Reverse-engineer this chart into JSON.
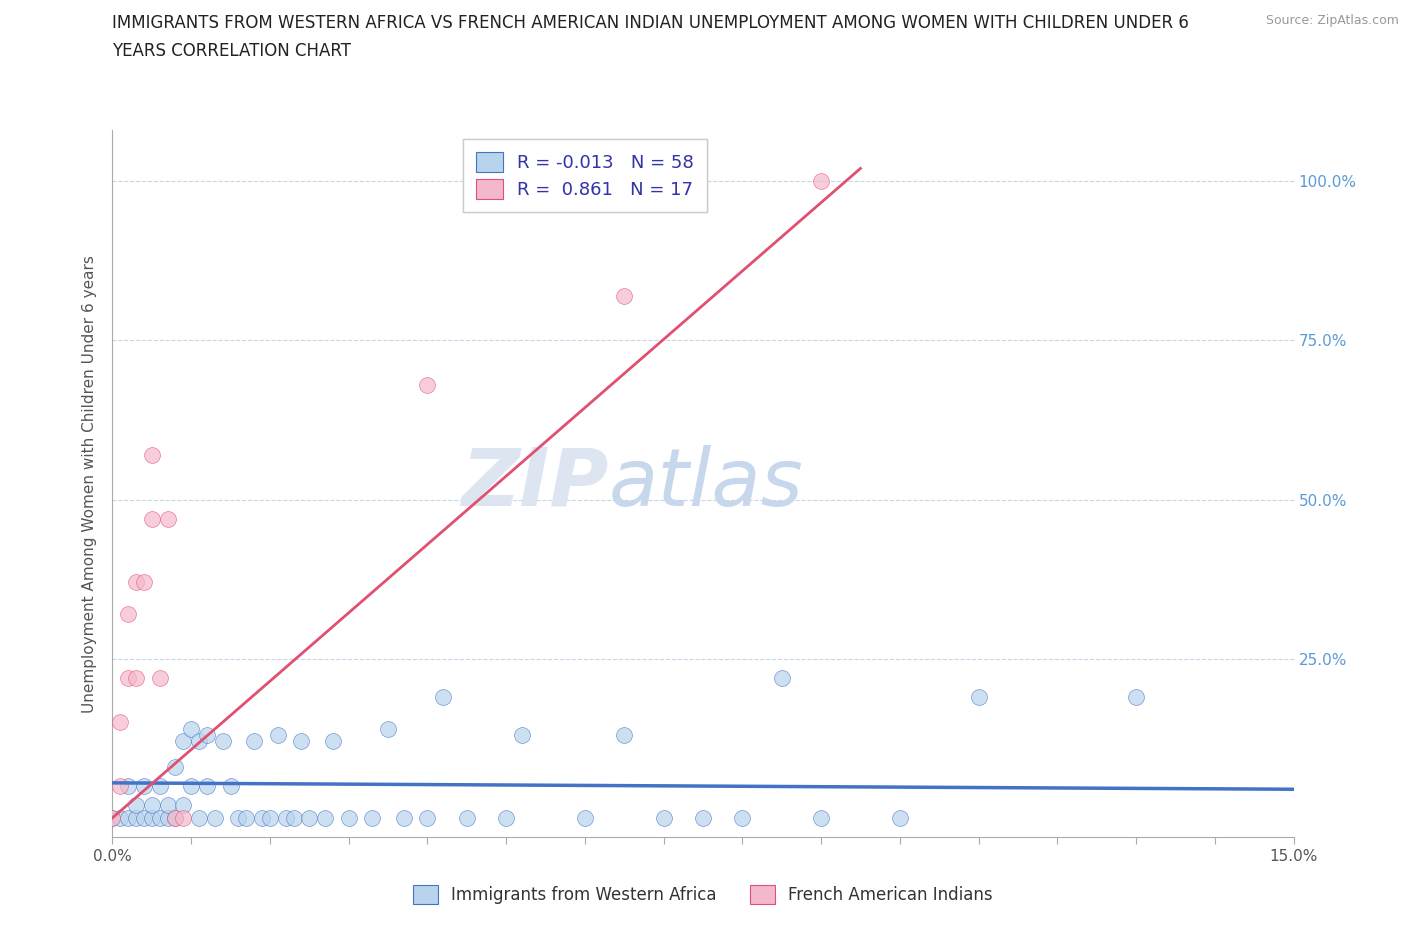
{
  "title_line1": "IMMIGRANTS FROM WESTERN AFRICA VS FRENCH AMERICAN INDIAN UNEMPLOYMENT AMONG WOMEN WITH CHILDREN UNDER 6",
  "title_line2": "YEARS CORRELATION CHART",
  "source": "Source: ZipAtlas.com",
  "ylabel": "Unemployment Among Women with Children Under 6 years",
  "x_min": 0.0,
  "x_max": 0.15,
  "y_min": -0.03,
  "y_max": 1.08,
  "legend_blue_label": "R = -0.013   N = 58",
  "legend_pink_label": "R =  0.861   N = 17",
  "blue_color_fill": "#b8d4ec",
  "blue_color_edge": "#4472c4",
  "pink_color_fill": "#f4b8cc",
  "pink_color_edge": "#e05070",
  "blue_line_color": "#4472c4",
  "pink_line_color": "#e05070",
  "grid_color": "#c8d4e8",
  "background_color": "#ffffff",
  "right_tick_color": "#5b9bd5",
  "blue_scatter": [
    [
      0.0,
      0.0
    ],
    [
      0.001,
      0.0
    ],
    [
      0.002,
      0.0
    ],
    [
      0.002,
      0.05
    ],
    [
      0.003,
      0.0
    ],
    [
      0.003,
      0.02
    ],
    [
      0.004,
      0.0
    ],
    [
      0.004,
      0.05
    ],
    [
      0.005,
      0.0
    ],
    [
      0.005,
      0.02
    ],
    [
      0.006,
      0.0
    ],
    [
      0.006,
      0.05
    ],
    [
      0.007,
      0.0
    ],
    [
      0.007,
      0.02
    ],
    [
      0.008,
      0.0
    ],
    [
      0.008,
      0.08
    ],
    [
      0.009,
      0.02
    ],
    [
      0.009,
      0.12
    ],
    [
      0.01,
      0.05
    ],
    [
      0.01,
      0.14
    ],
    [
      0.011,
      0.0
    ],
    [
      0.011,
      0.12
    ],
    [
      0.012,
      0.05
    ],
    [
      0.012,
      0.13
    ],
    [
      0.013,
      0.0
    ],
    [
      0.014,
      0.12
    ],
    [
      0.015,
      0.05
    ],
    [
      0.016,
      0.0
    ],
    [
      0.017,
      0.0
    ],
    [
      0.018,
      0.12
    ],
    [
      0.019,
      0.0
    ],
    [
      0.02,
      0.0
    ],
    [
      0.021,
      0.13
    ],
    [
      0.022,
      0.0
    ],
    [
      0.023,
      0.0
    ],
    [
      0.024,
      0.12
    ],
    [
      0.025,
      0.0
    ],
    [
      0.027,
      0.0
    ],
    [
      0.028,
      0.12
    ],
    [
      0.03,
      0.0
    ],
    [
      0.033,
      0.0
    ],
    [
      0.035,
      0.14
    ],
    [
      0.037,
      0.0
    ],
    [
      0.04,
      0.0
    ],
    [
      0.042,
      0.19
    ],
    [
      0.045,
      0.0
    ],
    [
      0.05,
      0.0
    ],
    [
      0.052,
      0.13
    ],
    [
      0.06,
      0.0
    ],
    [
      0.065,
      0.13
    ],
    [
      0.07,
      0.0
    ],
    [
      0.075,
      0.0
    ],
    [
      0.08,
      0.0
    ],
    [
      0.085,
      0.22
    ],
    [
      0.09,
      0.0
    ],
    [
      0.1,
      0.0
    ],
    [
      0.11,
      0.19
    ],
    [
      0.13,
      0.19
    ]
  ],
  "pink_scatter": [
    [
      0.0,
      0.0
    ],
    [
      0.001,
      0.05
    ],
    [
      0.001,
      0.15
    ],
    [
      0.002,
      0.32
    ],
    [
      0.002,
      0.22
    ],
    [
      0.003,
      0.37
    ],
    [
      0.003,
      0.22
    ],
    [
      0.004,
      0.37
    ],
    [
      0.005,
      0.47
    ],
    [
      0.005,
      0.57
    ],
    [
      0.006,
      0.22
    ],
    [
      0.007,
      0.47
    ],
    [
      0.008,
      0.0
    ],
    [
      0.009,
      0.0
    ],
    [
      0.04,
      0.68
    ],
    [
      0.065,
      0.82
    ],
    [
      0.09,
      1.0
    ]
  ],
  "blue_line_x": [
    0.0,
    0.15
  ],
  "blue_line_y": [
    0.055,
    0.045
  ],
  "pink_line_x": [
    0.0,
    0.095
  ],
  "pink_line_y": [
    0.0,
    1.02
  ]
}
